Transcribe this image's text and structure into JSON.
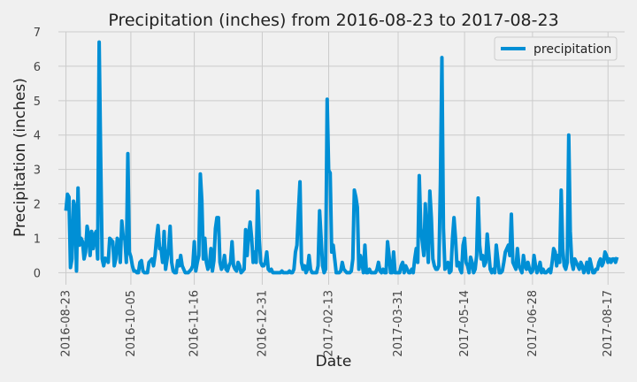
{
  "chart_data": {
    "type": "line",
    "title": "Precipitation (inches) from 2016-08-23 to 2017-08-23",
    "xlabel": "Date",
    "ylabel": "Precipitation (inches)",
    "xlim": [
      "2016-08-18",
      "2017-08-28"
    ],
    "ylim": [
      -0.35,
      7.0
    ],
    "yticks": [
      0,
      1,
      2,
      3,
      4,
      5,
      6,
      7
    ],
    "xticks": [
      "2016-08-23",
      "2016-10-05",
      "2016-11-16",
      "2016-12-31",
      "2017-02-13",
      "2017-03-31",
      "2017-05-14",
      "2017-06-28",
      "2017-08-17"
    ],
    "grid": true,
    "legend": {
      "position": "top-right",
      "entries": [
        "precipitation"
      ]
    },
    "colors": {
      "line": "#008fd5",
      "background": "#f0f0f0",
      "grid": "#cbcbcb"
    },
    "series": [
      {
        "name": "precipitation",
        "x": [
          "2016-08-23",
          "2016-08-24",
          "2016-08-25",
          "2016-08-26",
          "2016-08-27",
          "2016-08-28",
          "2016-08-29",
          "2016-08-30",
          "2016-08-31",
          "2016-09-01",
          "2016-09-02",
          "2016-09-03",
          "2016-09-04",
          "2016-09-05",
          "2016-09-06",
          "2016-09-07",
          "2016-09-08",
          "2016-09-09",
          "2016-09-10",
          "2016-09-11",
          "2016-09-12",
          "2016-09-13",
          "2016-09-14",
          "2016-09-15",
          "2016-09-16",
          "2016-09-17",
          "2016-09-18",
          "2016-09-19",
          "2016-09-20",
          "2016-09-21",
          "2016-09-22",
          "2016-09-23",
          "2016-09-24",
          "2016-09-25",
          "2016-09-26",
          "2016-09-27",
          "2016-09-28",
          "2016-09-29",
          "2016-09-30",
          "2016-10-01",
          "2016-10-02",
          "2016-10-03",
          "2016-10-04",
          "2016-10-05",
          "2016-10-06",
          "2016-10-07",
          "2016-10-08",
          "2016-10-09",
          "2016-10-10",
          "2016-10-11",
          "2016-10-12",
          "2016-10-13",
          "2016-10-14",
          "2016-10-15",
          "2016-10-16",
          "2016-10-17",
          "2016-10-18",
          "2016-10-19",
          "2016-10-20",
          "2016-10-21",
          "2016-10-22",
          "2016-10-23",
          "2016-10-24",
          "2016-10-25",
          "2016-10-26",
          "2016-10-27",
          "2016-10-28",
          "2016-10-29",
          "2016-10-30",
          "2016-10-31",
          "2016-11-01",
          "2016-11-02",
          "2016-11-03",
          "2016-11-04",
          "2016-11-05",
          "2016-11-06",
          "2016-11-07",
          "2016-11-08",
          "2016-11-09",
          "2016-11-10",
          "2016-11-11",
          "2016-11-12",
          "2016-11-13",
          "2016-11-14",
          "2016-11-15",
          "2016-11-16",
          "2016-11-17",
          "2016-11-18",
          "2016-11-19",
          "2016-11-20",
          "2016-11-21",
          "2016-11-22",
          "2016-11-23",
          "2016-11-24",
          "2016-11-25",
          "2016-11-26",
          "2016-11-27",
          "2016-11-28",
          "2016-11-29",
          "2016-11-30",
          "2016-12-01",
          "2016-12-02",
          "2016-12-03",
          "2016-12-04",
          "2016-12-05",
          "2016-12-06",
          "2016-12-07",
          "2016-12-08",
          "2016-12-09",
          "2016-12-10",
          "2016-12-11",
          "2016-12-12",
          "2016-12-13",
          "2016-12-14",
          "2016-12-15",
          "2016-12-16",
          "2016-12-17",
          "2016-12-18",
          "2016-12-19",
          "2016-12-20",
          "2016-12-21",
          "2016-12-22",
          "2016-12-23",
          "2016-12-24",
          "2016-12-25",
          "2016-12-26",
          "2016-12-27",
          "2016-12-28",
          "2016-12-29",
          "2016-12-30",
          "2016-12-31",
          "2017-01-01",
          "2017-01-02",
          "2017-01-03",
          "2017-01-04",
          "2017-01-05",
          "2017-01-06",
          "2017-01-07",
          "2017-01-08",
          "2017-01-09",
          "2017-01-10",
          "2017-01-11",
          "2017-01-12",
          "2017-01-13",
          "2017-01-14",
          "2017-01-15",
          "2017-01-16",
          "2017-01-17",
          "2017-01-18",
          "2017-01-19",
          "2017-01-20",
          "2017-01-21",
          "2017-01-22",
          "2017-01-23",
          "2017-01-24",
          "2017-01-25",
          "2017-01-26",
          "2017-01-27",
          "2017-01-28",
          "2017-01-29",
          "2017-01-30",
          "2017-01-31",
          "2017-02-01",
          "2017-02-02",
          "2017-02-03",
          "2017-02-04",
          "2017-02-05",
          "2017-02-06",
          "2017-02-07",
          "2017-02-08",
          "2017-02-09",
          "2017-02-10",
          "2017-02-11",
          "2017-02-12",
          "2017-02-13",
          "2017-02-14",
          "2017-02-15",
          "2017-02-16",
          "2017-02-17",
          "2017-02-18",
          "2017-02-19",
          "2017-02-20",
          "2017-02-21",
          "2017-02-22",
          "2017-02-23",
          "2017-02-24",
          "2017-02-25",
          "2017-02-26",
          "2017-02-27",
          "2017-02-28",
          "2017-03-01",
          "2017-03-02",
          "2017-03-03",
          "2017-03-04",
          "2017-03-05",
          "2017-03-06",
          "2017-03-07",
          "2017-03-08",
          "2017-03-09",
          "2017-03-10",
          "2017-03-11",
          "2017-03-12",
          "2017-03-13",
          "2017-03-14",
          "2017-03-15",
          "2017-03-16",
          "2017-03-17",
          "2017-03-18",
          "2017-03-19",
          "2017-03-20",
          "2017-03-21",
          "2017-03-22",
          "2017-03-23",
          "2017-03-24",
          "2017-03-25",
          "2017-03-26",
          "2017-03-27",
          "2017-03-28",
          "2017-03-29",
          "2017-03-30",
          "2017-03-31",
          "2017-04-01",
          "2017-04-02",
          "2017-04-03",
          "2017-04-04",
          "2017-04-05",
          "2017-04-06",
          "2017-04-07",
          "2017-04-08",
          "2017-04-09",
          "2017-04-10",
          "2017-04-11",
          "2017-04-12",
          "2017-04-13",
          "2017-04-14",
          "2017-04-15",
          "2017-04-16",
          "2017-04-17",
          "2017-04-18",
          "2017-04-19",
          "2017-04-20",
          "2017-04-21",
          "2017-04-22",
          "2017-04-23",
          "2017-04-24",
          "2017-04-25",
          "2017-04-26",
          "2017-04-27",
          "2017-04-28",
          "2017-04-29",
          "2017-04-30",
          "2017-05-01",
          "2017-05-02",
          "2017-05-03",
          "2017-05-04",
          "2017-05-05",
          "2017-05-06",
          "2017-05-07",
          "2017-05-08",
          "2017-05-09",
          "2017-05-10",
          "2017-05-11",
          "2017-05-12",
          "2017-05-13",
          "2017-05-14",
          "2017-05-15",
          "2017-05-16",
          "2017-05-17",
          "2017-05-18",
          "2017-05-19",
          "2017-05-20",
          "2017-05-21",
          "2017-05-22",
          "2017-05-23",
          "2017-05-24",
          "2017-05-25",
          "2017-05-26",
          "2017-05-27",
          "2017-05-28",
          "2017-05-29",
          "2017-05-30",
          "2017-05-31",
          "2017-06-01",
          "2017-06-02",
          "2017-06-03",
          "2017-06-04",
          "2017-06-05",
          "2017-06-06",
          "2017-06-07",
          "2017-06-08",
          "2017-06-09",
          "2017-06-10",
          "2017-06-11",
          "2017-06-12",
          "2017-06-13",
          "2017-06-14",
          "2017-06-15",
          "2017-06-16",
          "2017-06-17",
          "2017-06-18",
          "2017-06-19",
          "2017-06-20",
          "2017-06-21",
          "2017-06-22",
          "2017-06-23",
          "2017-06-24",
          "2017-06-25",
          "2017-06-26",
          "2017-06-27",
          "2017-06-28",
          "2017-06-29",
          "2017-06-30",
          "2017-07-01",
          "2017-07-02",
          "2017-07-03",
          "2017-07-04",
          "2017-07-05",
          "2017-07-06",
          "2017-07-07",
          "2017-07-08",
          "2017-07-09",
          "2017-07-10",
          "2017-07-11",
          "2017-07-12",
          "2017-07-13",
          "2017-07-14",
          "2017-07-15",
          "2017-07-16",
          "2017-07-17",
          "2017-07-18",
          "2017-07-19",
          "2017-07-20",
          "2017-07-21",
          "2017-07-22",
          "2017-07-23",
          "2017-07-24",
          "2017-07-25",
          "2017-07-26",
          "2017-07-27",
          "2017-07-28",
          "2017-07-29",
          "2017-07-30",
          "2017-07-31",
          "2017-08-01",
          "2017-08-02",
          "2017-08-03",
          "2017-08-04",
          "2017-08-05",
          "2017-08-06",
          "2017-08-07",
          "2017-08-08",
          "2017-08-09",
          "2017-08-10",
          "2017-08-11",
          "2017-08-12",
          "2017-08-13",
          "2017-08-14",
          "2017-08-15",
          "2017-08-16",
          "2017-08-17",
          "2017-08-18",
          "2017-08-19",
          "2017-08-20",
          "2017-08-21",
          "2017-08-22",
          "2017-08-23"
        ],
        "values": [
          1.8,
          2.28,
          2.2,
          0.15,
          0.4,
          2.08,
          1.9,
          0.05,
          2.46,
          0.8,
          1.0,
          0.9,
          0.4,
          0.6,
          1.35,
          1.1,
          0.5,
          1.2,
          0.7,
          1.1,
          1.2,
          0.4,
          6.7,
          3.35,
          0.4,
          0.2,
          0.42,
          0.4,
          0.3,
          1.0,
          0.95,
          0.9,
          0.2,
          0.4,
          1.0,
          0.9,
          0.3,
          1.5,
          1.0,
          1.0,
          0.3,
          3.46,
          0.6,
          0.46,
          0.2,
          0.05,
          0.05,
          0.0,
          0.0,
          0.3,
          0.35,
          0.05,
          0.0,
          0.0,
          0.0,
          0.3,
          0.35,
          0.4,
          0.2,
          0.5,
          1.0,
          1.37,
          0.7,
          0.7,
          0.3,
          1.2,
          0.1,
          0.4,
          0.7,
          1.35,
          0.3,
          0.05,
          0.0,
          0.0,
          0.35,
          0.2,
          0.5,
          0.2,
          0.1,
          0.0,
          0.0,
          0.0,
          0.05,
          0.1,
          0.2,
          0.9,
          0.05,
          0.3,
          0.5,
          2.87,
          2.1,
          0.4,
          1.0,
          0.3,
          0.1,
          0.2,
          0.7,
          0.05,
          0.35,
          1.28,
          1.6,
          1.6,
          0.3,
          0.1,
          0.2,
          0.5,
          0.1,
          0.05,
          0.2,
          0.3,
          0.9,
          0.2,
          0.1,
          0.05,
          0.3,
          0.2,
          0.0,
          0.05,
          0.1,
          1.25,
          0.5,
          1.1,
          1.47,
          1.0,
          0.3,
          0.6,
          0.3,
          2.37,
          1.0,
          0.3,
          0.2,
          0.2,
          0.3,
          0.6,
          0.1,
          0.05,
          0.1,
          0.0,
          0.0,
          0.0,
          0.0,
          0.0,
          0.0,
          0.05,
          0.0,
          0.0,
          0.0,
          0.0,
          0.05,
          0.0,
          0.0,
          0.1,
          0.6,
          0.8,
          1.8,
          2.64,
          0.3,
          0.1,
          0.2,
          0.0,
          0.1,
          0.5,
          0.1,
          0.0,
          0.0,
          0.0,
          0.0,
          0.2,
          1.8,
          1.0,
          0.2,
          0.0,
          0.1,
          5.04,
          2.98,
          2.9,
          0.6,
          0.8,
          0.4,
          0.0,
          0.0,
          0.0,
          0.05,
          0.3,
          0.1,
          0.05,
          0.0,
          0.0,
          0.0,
          0.05,
          0.4,
          2.4,
          2.2,
          1.9,
          0.1,
          0.5,
          0.3,
          0.0,
          0.8,
          0.0,
          0.0,
          0.1,
          0.0,
          0.0,
          0.0,
          0.0,
          0.1,
          0.3,
          0.05,
          0.0,
          0.1,
          0.0,
          0.0,
          0.9,
          0.5,
          0.0,
          0.0,
          0.6,
          0.0,
          0.0,
          0.0,
          0.0,
          0.2,
          0.3,
          0.0,
          0.2,
          0.1,
          0.0,
          0.0,
          0.1,
          0.0,
          0.4,
          0.7,
          0.3,
          2.82,
          1.3,
          0.9,
          0.5,
          2.0,
          1.0,
          0.3,
          2.37,
          1.6,
          0.4,
          0.2,
          0.1,
          0.1,
          0.2,
          2.6,
          6.25,
          1.3,
          0.1,
          0.2,
          0.3,
          0.0,
          0.05,
          1.0,
          1.6,
          1.0,
          0.2,
          0.3,
          0.1,
          0.0,
          0.8,
          1.0,
          0.3,
          0.2,
          0.0,
          0.45,
          0.3,
          0.0,
          0.1,
          0.5,
          2.17,
          0.8,
          0.4,
          0.5,
          0.2,
          0.3,
          1.12,
          0.6,
          0.1,
          0.0,
          0.1,
          0.0,
          0.8,
          0.4,
          0.0,
          0.0,
          0.05,
          0.3,
          0.6,
          0.7,
          0.8,
          0.5,
          1.7,
          0.3,
          0.2,
          0.1,
          0.7,
          0.2,
          0.1,
          0.0,
          0.5,
          0.2,
          0.1,
          0.3,
          0.1,
          0.0,
          0.05,
          0.5,
          0.2,
          0.0,
          0.1,
          0.3,
          0.0,
          0.1,
          0.0,
          0.0,
          0.05,
          0.1,
          0.0,
          0.3,
          0.7,
          0.6,
          0.2,
          0.5,
          0.3,
          2.4,
          0.7,
          0.2,
          0.1,
          0.3,
          4.0,
          1.2,
          0.3,
          0.1,
          0.4,
          0.3,
          0.2,
          0.1,
          0.3,
          0.2,
          0.0,
          0.1,
          0.3,
          0.0,
          0.4,
          0.2,
          0.0,
          0.0,
          0.1,
          0.1,
          0.3,
          0.4,
          0.2,
          0.3,
          0.6,
          0.5,
          0.3,
          0.4,
          0.3,
          0.4,
          0.4,
          0.3,
          0.45
        ]
      }
    ]
  }
}
